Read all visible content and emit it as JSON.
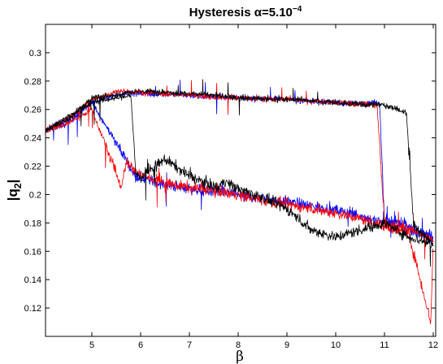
{
  "chart_data": {
    "type": "line",
    "title": "Hysteresis α=5.10",
    "title_exponent": "−4",
    "xlabel": "β",
    "ylabel_base": "|q",
    "ylabel_sub": "2",
    "ylabel_end": "|",
    "xlim": [
      4.05,
      12.05
    ],
    "ylim": [
      0.1,
      0.32
    ],
    "xticks": [
      "5",
      "6",
      "7",
      "8",
      "9",
      "10",
      "11",
      "12"
    ],
    "yticks": [
      "0.12",
      "0.14",
      "0.16",
      "0.18",
      "0.2",
      "0.22",
      "0.24",
      "0.26",
      "0.28",
      "0.3"
    ],
    "grid": false,
    "legend": "none",
    "series": [
      {
        "color": "#0000ff",
        "upper_jump_beta": 5.75,
        "lower_jump_beta": 10.9,
        "forward_x": [
          4.05,
          4.5,
          5.0,
          5.7,
          5.85,
          6.0,
          6.5,
          7.0,
          7.5,
          8.0,
          8.5,
          9.0,
          9.5,
          10.0,
          10.5,
          11.0,
          11.5,
          12.0
        ],
        "forward_y": [
          0.245,
          0.25,
          0.265,
          0.225,
          0.215,
          0.212,
          0.207,
          0.204,
          0.202,
          0.2,
          0.197,
          0.195,
          0.192,
          0.189,
          0.185,
          0.18,
          0.175,
          0.17
        ],
        "backward_x": [
          12.0,
          11.5,
          11.0,
          10.9,
          10.5,
          10.0,
          9.0,
          8.0,
          7.0,
          6.0,
          5.75,
          5.5,
          5.0,
          4.6,
          4.05
        ],
        "backward_y": [
          0.17,
          0.178,
          0.182,
          0.265,
          0.264,
          0.265,
          0.267,
          0.268,
          0.27,
          0.271,
          0.272,
          0.27,
          0.265,
          0.255,
          0.245
        ]
      },
      {
        "color": "#ff0000",
        "upper_jump_beta": 5.55,
        "lower_jump_beta": 10.85,
        "forward_x": [
          4.05,
          4.5,
          5.0,
          5.5,
          5.6,
          5.7,
          6.0,
          6.5,
          7.0,
          7.5,
          8.0,
          8.5,
          9.0,
          9.5,
          10.0,
          10.5,
          11.0,
          11.5,
          11.95,
          12.0
        ],
        "forward_y": [
          0.245,
          0.25,
          0.26,
          0.215,
          0.205,
          0.222,
          0.214,
          0.208,
          0.205,
          0.203,
          0.2,
          0.196,
          0.193,
          0.19,
          0.187,
          0.183,
          0.178,
          0.172,
          0.11,
          0.168
        ],
        "backward_x": [
          12.0,
          11.5,
          11.0,
          10.85,
          10.5,
          10.0,
          9.0,
          8.0,
          7.0,
          6.0,
          5.55,
          5.0,
          4.6,
          4.05
        ],
        "backward_y": [
          0.168,
          0.176,
          0.18,
          0.263,
          0.264,
          0.265,
          0.267,
          0.268,
          0.27,
          0.272,
          0.273,
          0.267,
          0.255,
          0.245
        ]
      },
      {
        "color": "#000000",
        "upper_jump_beta": 7.65,
        "lower_jump_beta": 11.45,
        "forward_x": [
          4.05,
          4.5,
          5.0,
          5.8,
          5.9,
          6.0,
          6.5,
          7.0,
          7.5,
          7.6,
          7.7,
          8.0,
          8.5,
          9.0,
          9.5,
          10.0,
          10.5,
          11.0,
          11.5,
          12.0
        ],
        "forward_y": [
          0.245,
          0.255,
          0.265,
          0.27,
          0.215,
          0.212,
          0.225,
          0.213,
          0.206,
          0.205,
          0.21,
          0.204,
          0.198,
          0.19,
          0.175,
          0.17,
          0.175,
          0.18,
          0.17,
          0.165
        ],
        "backward_x": [
          12.0,
          11.6,
          11.45,
          11.0,
          10.5,
          10.0,
          9.0,
          8.0,
          7.65,
          7.0,
          6.0,
          5.0,
          4.6,
          4.05
        ],
        "backward_y": [
          0.165,
          0.178,
          0.258,
          0.263,
          0.264,
          0.265,
          0.267,
          0.268,
          0.27,
          0.271,
          0.273,
          0.268,
          0.255,
          0.245
        ]
      }
    ]
  }
}
